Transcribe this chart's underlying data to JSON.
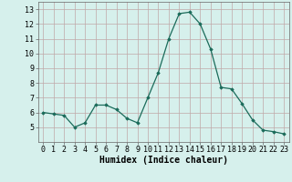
{
  "x": [
    0,
    1,
    2,
    3,
    4,
    5,
    6,
    7,
    8,
    9,
    10,
    11,
    12,
    13,
    14,
    15,
    16,
    17,
    18,
    19,
    20,
    21,
    22,
    23
  ],
  "y": [
    6.0,
    5.9,
    5.8,
    5.0,
    5.3,
    6.5,
    6.5,
    6.2,
    5.6,
    5.3,
    7.0,
    8.7,
    11.0,
    12.7,
    12.8,
    12.0,
    10.3,
    7.7,
    7.6,
    6.6,
    5.5,
    4.8,
    4.7,
    4.55
  ],
  "line_color": "#1a6b5a",
  "marker": "D",
  "marker_size": 1.8,
  "bg_color": "#d6f0ec",
  "grid_color": "#c0a8a8",
  "xlabel": "Humidex (Indice chaleur)",
  "xlabel_fontsize": 7,
  "tick_fontsize": 6,
  "xlim": [
    -0.5,
    23.5
  ],
  "ylim": [
    4.0,
    13.5
  ],
  "yticks": [
    5,
    6,
    7,
    8,
    9,
    10,
    11,
    12,
    13
  ],
  "xticks": [
    0,
    1,
    2,
    3,
    4,
    5,
    6,
    7,
    8,
    9,
    10,
    11,
    12,
    13,
    14,
    15,
    16,
    17,
    18,
    19,
    20,
    21,
    22,
    23
  ]
}
